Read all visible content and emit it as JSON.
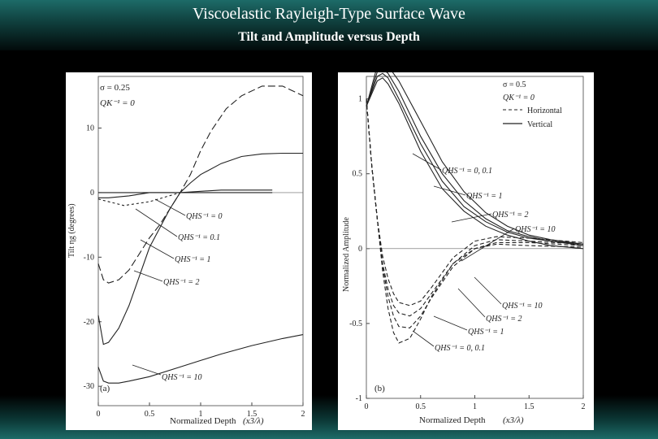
{
  "slide": {
    "title": "Viscoelastic Rayleigh-Type Surface Wave",
    "subtitle": "Tilt and Amplitude versus Depth"
  },
  "colors": {
    "background": "#000000",
    "band": "#1d6b68",
    "title_text": "#ffffff",
    "curve": "#222222"
  },
  "chart_data": [
    {
      "panel_label": "(a)",
      "type": "line",
      "xlabel": "Normalized Depth",
      "xlabel_math": "(x3/λ)",
      "ylabel": "Tilt ηg (degrees)",
      "xlim": [
        0,
        2
      ],
      "ylim": [
        -33,
        18
      ],
      "xticks": [
        "0",
        "0.5",
        "1",
        "1.5",
        "2"
      ],
      "yticks": [
        "10",
        "0",
        "-10",
        "-20",
        "-30"
      ],
      "legend": [
        "σ = 0.25",
        "QK⁻¹ = 0"
      ],
      "annotations": [
        "QHS⁻¹ = 0",
        "QHS⁻¹ = 0.1",
        "QHS⁻¹ = 1",
        "QHS⁻¹ = 2",
        "QHS⁻¹ = 10"
      ],
      "series": [
        {
          "name": "QHS⁻¹ = 0",
          "dash": "solid",
          "x": [
            0,
            0.3,
            0.6,
            0.8,
            1.2,
            1.7
          ],
          "y": [
            0,
            0,
            0,
            0,
            0,
            0
          ]
        },
        {
          "name": "QHS⁻¹ = 0.1",
          "dash": "solid",
          "x": [
            0,
            0.1,
            0.3,
            0.5,
            0.8,
            1.2,
            1.7
          ],
          "y": [
            -0.8,
            -0.8,
            -0.5,
            0,
            0,
            0.4,
            0.4
          ]
        },
        {
          "name": "QHS⁻¹ = 1",
          "dash": "long",
          "x": [
            0,
            0.05,
            0.1,
            0.2,
            0.3,
            0.4,
            0.5,
            0.6,
            0.7,
            0.8,
            0.9,
            1.0,
            1.1,
            1.25,
            1.4,
            1.6,
            1.8,
            2.0
          ],
          "y": [
            -11,
            -13.5,
            -14,
            -13.5,
            -12,
            -9.5,
            -7,
            -5,
            -2.5,
            0,
            2.8,
            6.5,
            9.5,
            13,
            15,
            16.5,
            16.5,
            15
          ]
        },
        {
          "name": "QHS⁻¹ = 2",
          "dash": "solid",
          "x": [
            0,
            0.05,
            0.1,
            0.2,
            0.3,
            0.4,
            0.5,
            0.6,
            0.7,
            0.8,
            0.9,
            1.0,
            1.2,
            1.4,
            1.6,
            1.8,
            2.0
          ],
          "y": [
            -19,
            -23.5,
            -23.2,
            -21,
            -17.5,
            -13,
            -8.5,
            -5.5,
            -2.5,
            0,
            1.5,
            2.8,
            4.5,
            5.6,
            6,
            6.1,
            6.1
          ]
        },
        {
          "name": "QHS⁻¹ = 10",
          "dash": "solid",
          "x": [
            0,
            0.05,
            0.1,
            0.2,
            0.3,
            0.5,
            0.8,
            1.0,
            1.2,
            1.5,
            1.8,
            2.0
          ],
          "y": [
            -27,
            -29.2,
            -29.5,
            -29.5,
            -29.2,
            -28.5,
            -27,
            -26,
            -25,
            -23.7,
            -22.6,
            -22
          ]
        },
        {
          "name": "",
          "dash": "short",
          "x": [
            0,
            0.25,
            0.5,
            0.8
          ],
          "y": [
            -1,
            -2,
            -1.4,
            0
          ]
        }
      ]
    },
    {
      "panel_label": "(b)",
      "type": "line",
      "xlabel": "Normalized Depth",
      "xlabel_math": "(x3/λ)",
      "ylabel": "Normalized Amplitude",
      "xlim": [
        0,
        2
      ],
      "ylim": [
        -1,
        1.15
      ],
      "xticks": [
        "0",
        "0.5",
        "1",
        "1.5",
        "2"
      ],
      "yticks": [
        "1",
        "0.5",
        "0",
        "-0.5",
        "-1"
      ],
      "legend": [
        "σ = 0.5",
        "QK⁻¹ = 0",
        "Horizontal",
        "Vertical"
      ],
      "annotations": [
        "QHS⁻¹ = 0, 0.1",
        "QHS⁻¹ = 1",
        "QHS⁻¹ = 2",
        "QHS⁻¹ = 10",
        "QHS⁻¹ = 10",
        "QHS⁻¹ = 2",
        "QHS⁻¹ = 1",
        "QHS⁻¹ = 0, 0.1"
      ],
      "series": [
        {
          "name": "Vertical, QHS⁻¹ = 0, 0.1",
          "dash": "solid",
          "x": [
            0,
            0.1,
            0.15,
            0.2,
            0.3,
            0.5,
            0.7,
            0.9,
            1.1,
            1.3,
            1.5,
            1.7,
            2.0
          ],
          "y": [
            0.95,
            1.22,
            1.25,
            1.22,
            1.12,
            0.85,
            0.58,
            0.38,
            0.24,
            0.15,
            0.09,
            0.06,
            0.03
          ]
        },
        {
          "name": "Vertical, QHS⁻¹ = 1",
          "dash": "solid",
          "x": [
            0,
            0.1,
            0.15,
            0.2,
            0.3,
            0.5,
            0.7,
            0.9,
            1.1,
            1.3,
            1.5,
            1.7,
            2.0
          ],
          "y": [
            0.95,
            1.18,
            1.2,
            1.17,
            1.05,
            0.75,
            0.5,
            0.32,
            0.2,
            0.12,
            0.08,
            0.05,
            0.03
          ]
        },
        {
          "name": "Vertical, QHS⁻¹ = 2",
          "dash": "solid",
          "x": [
            0,
            0.1,
            0.15,
            0.2,
            0.3,
            0.5,
            0.7,
            0.9,
            1.1,
            1.3,
            1.5,
            1.7,
            2.0
          ],
          "y": [
            0.95,
            1.15,
            1.17,
            1.14,
            1.0,
            0.7,
            0.45,
            0.28,
            0.18,
            0.11,
            0.07,
            0.05,
            0.02
          ]
        },
        {
          "name": "Vertical, QHS⁻¹ = 10",
          "dash": "solid",
          "x": [
            0,
            0.1,
            0.15,
            0.2,
            0.3,
            0.5,
            0.7,
            0.9,
            1.1,
            1.3,
            1.5,
            1.7,
            2.0
          ],
          "y": [
            0.95,
            1.12,
            1.14,
            1.1,
            0.97,
            0.65,
            0.4,
            0.25,
            0.15,
            0.09,
            0.05,
            0.02,
            0
          ]
        },
        {
          "name": "Horizontal, QHS⁻¹ = 0, 0.1",
          "dash": "dashed",
          "x": [
            0,
            0.05,
            0.1,
            0.15,
            0.2,
            0.25,
            0.3,
            0.4,
            0.5,
            0.6,
            0.8,
            1.0,
            1.2,
            1.5,
            2.0
          ],
          "y": [
            1,
            0.55,
            0.2,
            -0.15,
            -0.4,
            -0.56,
            -0.63,
            -0.6,
            -0.47,
            -0.32,
            -0.1,
            0,
            0.03,
            0.02,
            0.01
          ]
        },
        {
          "name": "Horizontal, QHS⁻¹ = 1",
          "dash": "dashed",
          "x": [
            0,
            0.05,
            0.1,
            0.15,
            0.2,
            0.25,
            0.3,
            0.4,
            0.5,
            0.6,
            0.8,
            1.0,
            1.2,
            1.5,
            2.0
          ],
          "y": [
            1,
            0.55,
            0.2,
            -0.12,
            -0.32,
            -0.45,
            -0.52,
            -0.53,
            -0.45,
            -0.33,
            -0.12,
            0,
            0.04,
            0.04,
            0.02
          ]
        },
        {
          "name": "Horizontal, QHS⁻¹ = 2",
          "dash": "dashed",
          "x": [
            0,
            0.05,
            0.1,
            0.15,
            0.2,
            0.25,
            0.3,
            0.4,
            0.5,
            0.6,
            0.8,
            1.0,
            1.2,
            1.5,
            2.0
          ],
          "y": [
            1,
            0.55,
            0.2,
            -0.1,
            -0.27,
            -0.38,
            -0.43,
            -0.45,
            -0.4,
            -0.3,
            -0.1,
            0.02,
            0.06,
            0.05,
            0.03
          ]
        },
        {
          "name": "Horizontal, QHS⁻¹ = 10",
          "dash": "dashed",
          "x": [
            0,
            0.05,
            0.1,
            0.15,
            0.2,
            0.25,
            0.3,
            0.4,
            0.5,
            0.6,
            0.8,
            1.0,
            1.2,
            1.5,
            2.0
          ],
          "y": [
            1,
            0.55,
            0.2,
            -0.05,
            -0.2,
            -0.3,
            -0.36,
            -0.38,
            -0.35,
            -0.26,
            -0.06,
            0.05,
            0.08,
            0.07,
            0.04
          ]
        }
      ]
    }
  ]
}
